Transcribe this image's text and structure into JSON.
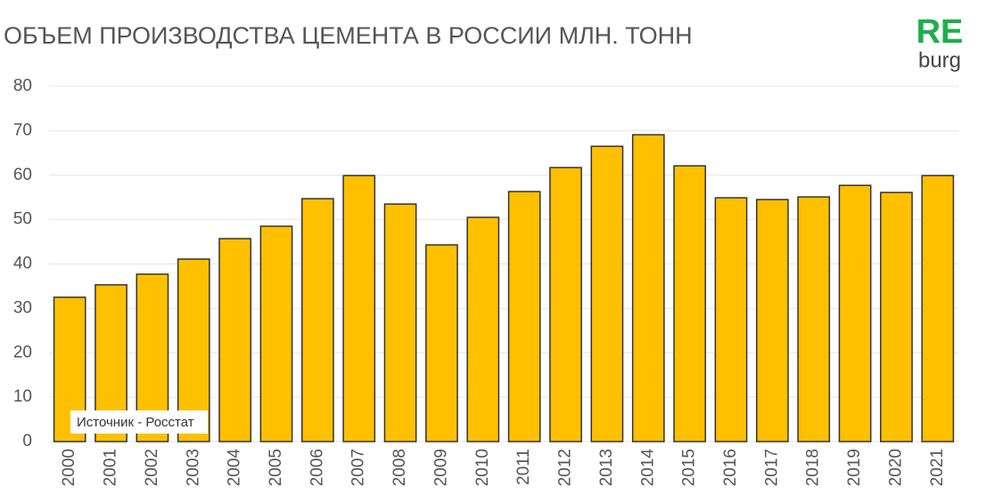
{
  "chart_data": {
    "type": "bar",
    "title": "ОБЪЕМ ПРОИЗВОДСТВА ЦЕМЕНТА В РОССИИ МЛН. ТОНН",
    "brand": [
      "RE",
      "burg"
    ],
    "note": "Источник - Росстат",
    "categories": [
      "2000",
      "2001",
      "2002",
      "2003",
      "2004",
      "2005",
      "2006",
      "2007",
      "2008",
      "2009",
      "2010",
      "2011",
      "2012",
      "2013",
      "2014",
      "2015",
      "2016",
      "2017",
      "2018",
      "2019",
      "2020",
      "2021"
    ],
    "values": [
      32.5,
      35.3,
      37.7,
      41.1,
      45.7,
      48.5,
      54.7,
      59.9,
      53.5,
      44.3,
      50.5,
      56.3,
      61.7,
      66.5,
      69.1,
      62.1,
      54.9,
      54.5,
      55.1,
      57.7,
      56.1,
      59.9
    ],
    "color": "#ffc000",
    "ylim": [
      0,
      80
    ],
    "yticks": [
      0,
      10,
      20,
      30,
      40,
      50,
      60,
      70,
      80
    ],
    "grid": true
  }
}
